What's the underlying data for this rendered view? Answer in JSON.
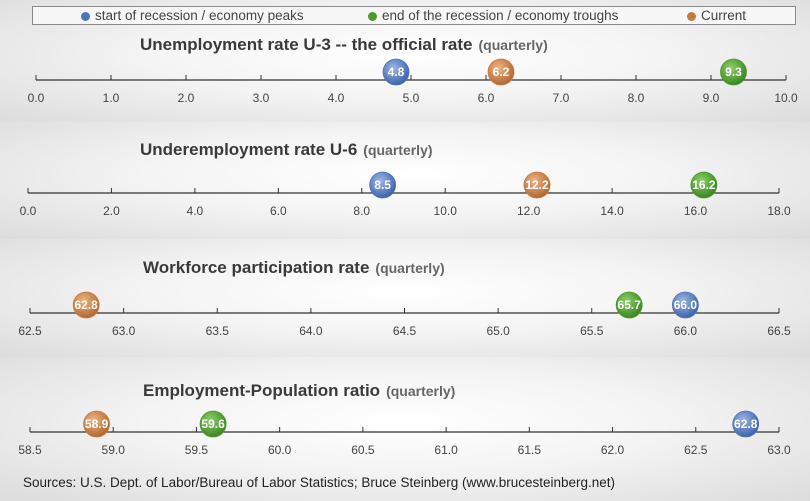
{
  "legend": {
    "peaks": {
      "label": "start of recession / economy peaks",
      "color": "#4f74c0"
    },
    "troughs": {
      "label": "end of the recession / economy troughs",
      "color": "#4c9a2a"
    },
    "current": {
      "label": "Current",
      "color": "#c87a3e"
    }
  },
  "source": "Sources: U.S. Dept. of Labor/Bureau of Labor Statistics; Bruce Steinberg (www.brucesteinberg.net)",
  "chart_data": [
    {
      "type": "scatter",
      "title": "Unemployment rate U-3 -- the official rate",
      "qualifier": "(quarterly)",
      "xlim": [
        0,
        10
      ],
      "ticks": [
        "0.0",
        "1.0",
        "2.0",
        "3.0",
        "4.0",
        "5.0",
        "6.0",
        "7.0",
        "8.0",
        "9.0",
        "10.0"
      ],
      "points": [
        {
          "series": "peaks",
          "value": 4.8,
          "label": "4.8"
        },
        {
          "series": "current",
          "value": 6.2,
          "label": "6.2"
        },
        {
          "series": "troughs",
          "value": 9.3,
          "label": "9.3"
        }
      ]
    },
    {
      "type": "scatter",
      "title": "Underemployment rate U-6",
      "qualifier": "(quarterly)",
      "xlim": [
        0,
        18
      ],
      "ticks": [
        "0.0",
        "2.0",
        "4.0",
        "6.0",
        "8.0",
        "10.0",
        "12.0",
        "14.0",
        "16.0",
        "18.0"
      ],
      "points": [
        {
          "series": "peaks",
          "value": 8.5,
          "label": "8.5"
        },
        {
          "series": "current",
          "value": 12.2,
          "label": "12.2"
        },
        {
          "series": "troughs",
          "value": 16.2,
          "label": "16.2"
        }
      ]
    },
    {
      "type": "scatter",
      "title": "Workforce participation rate",
      "qualifier": "(quarterly)",
      "xlim": [
        62.5,
        66.5
      ],
      "ticks": [
        "62.5",
        "63.0",
        "63.5",
        "64.0",
        "64.5",
        "65.0",
        "65.5",
        "66.0",
        "66.5"
      ],
      "points": [
        {
          "series": "current",
          "value": 62.8,
          "label": "62.8"
        },
        {
          "series": "troughs",
          "value": 65.7,
          "label": "65.7"
        },
        {
          "series": "peaks",
          "value": 66.0,
          "label": "66.0"
        }
      ]
    },
    {
      "type": "scatter",
      "title": "Employment-Population ratio",
      "qualifier": "(quarterly)",
      "xlim": [
        58.5,
        63.0
      ],
      "ticks": [
        "58.5",
        "59.0",
        "59.5",
        "60.0",
        "60.5",
        "61.0",
        "61.5",
        "62.0",
        "62.5",
        "63.0"
      ],
      "points": [
        {
          "series": "current",
          "value": 58.9,
          "label": "58.9"
        },
        {
          "series": "troughs",
          "value": 59.6,
          "label": "59.6"
        },
        {
          "series": "peaks",
          "value": 62.8,
          "label": "62.8"
        }
      ]
    }
  ]
}
